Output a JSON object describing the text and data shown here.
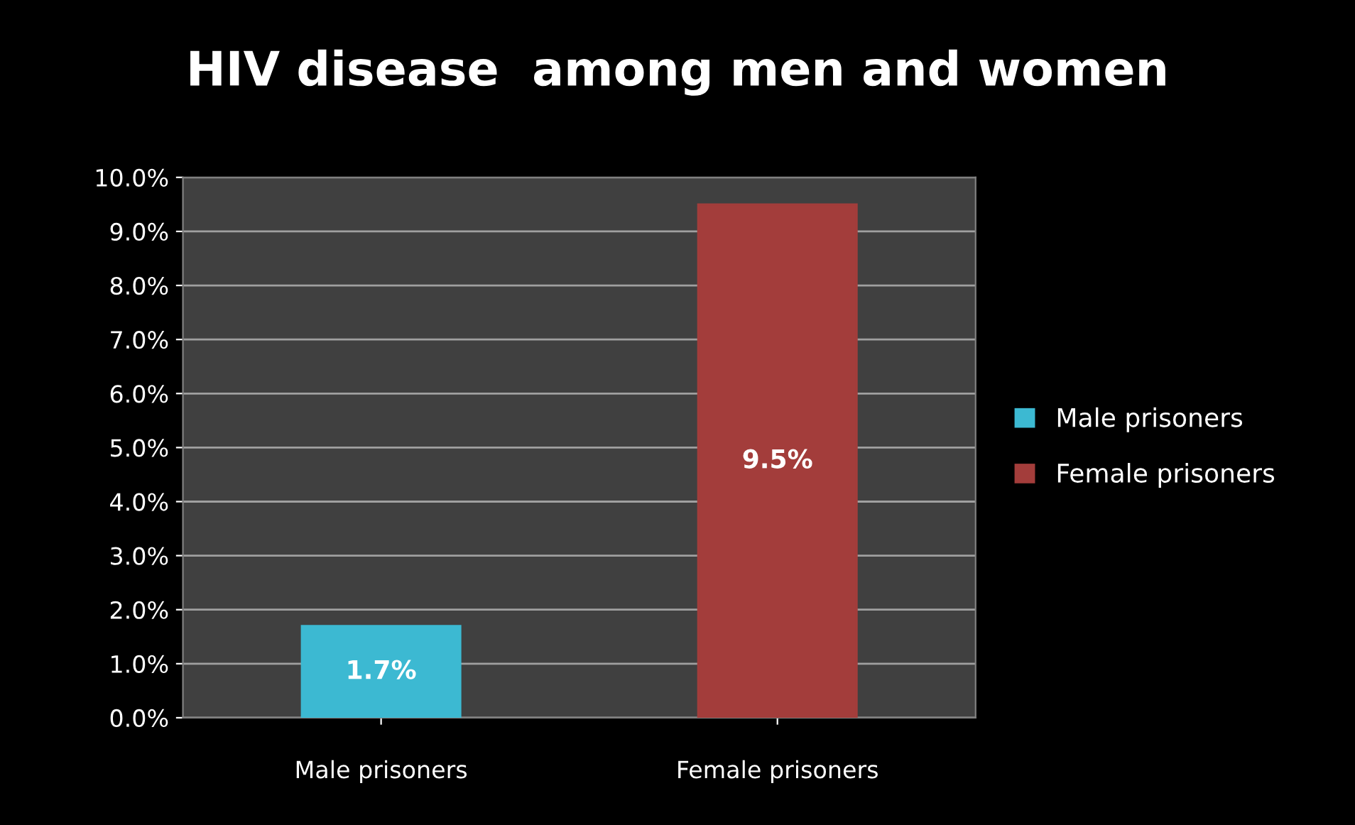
{
  "chart_data": {
    "type": "bar",
    "title": "HIV disease  among men and women",
    "categories": [
      "Male prisoners",
      "Female prisoners"
    ],
    "series": [
      {
        "name": "Male prisoners",
        "color": "#3cb9d2",
        "values": [
          1.7,
          null
        ],
        "value_labels": [
          "1.7%",
          null
        ]
      },
      {
        "name": "Female prisoners",
        "color": "#a33d3b",
        "values": [
          null,
          9.5
        ],
        "value_labels": [
          null,
          "9.5%"
        ]
      }
    ],
    "ylim": [
      0,
      10
    ],
    "yticks": [
      {
        "value": 0,
        "label": "0.0%"
      },
      {
        "value": 1,
        "label": "1.0%"
      },
      {
        "value": 2,
        "label": "2.0%"
      },
      {
        "value": 3,
        "label": "3.0%"
      },
      {
        "value": 4,
        "label": "4.0%"
      },
      {
        "value": 5,
        "label": "5.0%"
      },
      {
        "value": 6,
        "label": "6.0%"
      },
      {
        "value": 7,
        "label": "7.0%"
      },
      {
        "value": 8,
        "label": "8.0%"
      },
      {
        "value": 9,
        "label": "9.0%"
      },
      {
        "value": 10,
        "label": "10.0%"
      }
    ],
    "grid": "y",
    "legend": "right"
  }
}
